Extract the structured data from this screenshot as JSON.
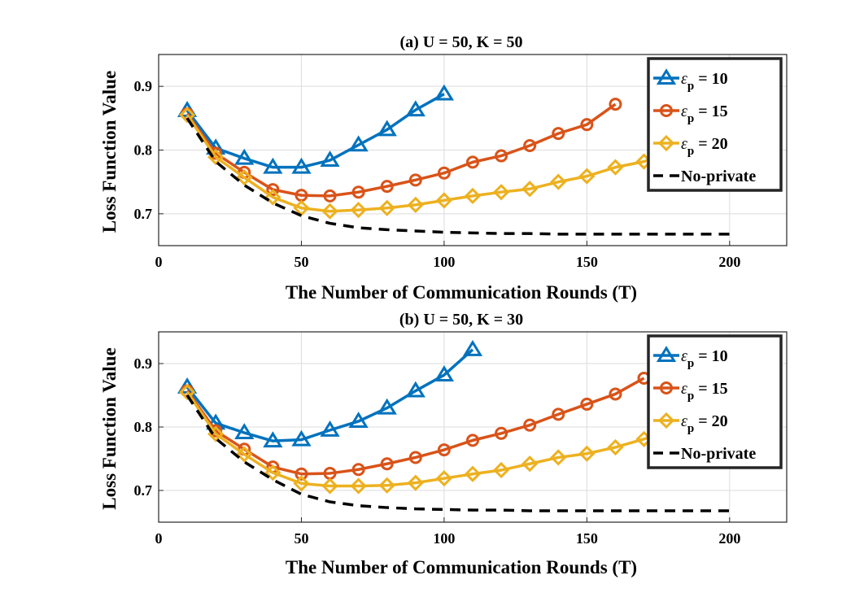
{
  "chart_data": [
    {
      "type": "line",
      "title": "(a) U = 50, K = 50",
      "xlabel": "The Number of Communication Rounds (T)",
      "ylabel": "Loss Function Value",
      "xlim": [
        0,
        220
      ],
      "ylim": [
        0.65,
        0.95
      ],
      "xticks": [
        0,
        50,
        100,
        150,
        200
      ],
      "yticks": [
        0.7,
        0.8,
        0.9
      ],
      "grid": true,
      "legend_position": "top-right",
      "series": [
        {
          "name": "ε_p = 10",
          "symbol": "ε",
          "subscript": "p",
          "value_text": " = 10",
          "color": "#0072BD",
          "marker": "triangle",
          "dash": false,
          "x": [
            10,
            20,
            30,
            40,
            50,
            60,
            70,
            80,
            90,
            100
          ],
          "y": [
            0.862,
            0.803,
            0.787,
            0.773,
            0.773,
            0.784,
            0.808,
            0.832,
            0.863,
            0.888
          ]
        },
        {
          "name": "ε_p = 15",
          "symbol": "ε",
          "subscript": "p",
          "value_text": " = 15",
          "color": "#D95319",
          "marker": "circle",
          "dash": false,
          "x": [
            10,
            20,
            30,
            40,
            50,
            60,
            70,
            80,
            90,
            100,
            110,
            120,
            130,
            140,
            150,
            160
          ],
          "y": [
            0.857,
            0.795,
            0.765,
            0.738,
            0.729,
            0.728,
            0.734,
            0.743,
            0.753,
            0.764,
            0.781,
            0.791,
            0.807,
            0.826,
            0.84,
            0.872
          ]
        },
        {
          "name": "ε_p = 20",
          "symbol": "ε",
          "subscript": "p",
          "value_text": " = 20",
          "color": "#EDB120",
          "marker": "diamond",
          "dash": false,
          "x": [
            10,
            20,
            30,
            40,
            50,
            60,
            70,
            80,
            90,
            100,
            110,
            120,
            130,
            140,
            150,
            160,
            170,
            180,
            190,
            200
          ],
          "y": [
            0.855,
            0.789,
            0.757,
            0.726,
            0.709,
            0.704,
            0.706,
            0.709,
            0.714,
            0.721,
            0.728,
            0.734,
            0.739,
            0.75,
            0.759,
            0.773,
            0.782,
            0.797,
            0.812,
            0.828
          ]
        },
        {
          "name": "No-private",
          "symbol": "",
          "subscript": "",
          "value_text": "No-private",
          "color": "#000000",
          "marker": "none",
          "dash": true,
          "x": [
            10,
            20,
            30,
            40,
            50,
            60,
            70,
            80,
            90,
            100,
            110,
            120,
            130,
            140,
            150,
            160,
            170,
            180,
            190,
            200
          ],
          "y": [
            0.85,
            0.782,
            0.745,
            0.717,
            0.697,
            0.685,
            0.678,
            0.675,
            0.673,
            0.671,
            0.67,
            0.669,
            0.669,
            0.668,
            0.668,
            0.668,
            0.668,
            0.668,
            0.668,
            0.668
          ]
        }
      ]
    },
    {
      "type": "line",
      "title": "(b) U = 50, K = 30",
      "xlabel": "The Number of Communication Rounds (T)",
      "ylabel": "Loss Function Value",
      "xlim": [
        0,
        220
      ],
      "ylim": [
        0.65,
        0.95
      ],
      "xticks": [
        0,
        50,
        100,
        150,
        200
      ],
      "yticks": [
        0.7,
        0.8,
        0.9
      ],
      "grid": true,
      "legend_position": "top-right",
      "series": [
        {
          "name": "ε_p = 10",
          "symbol": "ε",
          "subscript": "p",
          "value_text": " = 10",
          "color": "#0072BD",
          "marker": "triangle",
          "dash": false,
          "x": [
            10,
            20,
            30,
            40,
            50,
            60,
            70,
            80,
            90,
            100,
            110
          ],
          "y": [
            0.863,
            0.806,
            0.791,
            0.778,
            0.78,
            0.795,
            0.809,
            0.83,
            0.857,
            0.882,
            0.922
          ]
        },
        {
          "name": "ε_p = 15",
          "symbol": "ε",
          "subscript": "p",
          "value_text": " = 15",
          "color": "#D95319",
          "marker": "circle",
          "dash": false,
          "x": [
            10,
            20,
            30,
            40,
            50,
            60,
            70,
            80,
            90,
            100,
            110,
            120,
            130,
            140,
            150,
            160,
            170
          ],
          "y": [
            0.857,
            0.794,
            0.765,
            0.737,
            0.726,
            0.727,
            0.733,
            0.742,
            0.752,
            0.764,
            0.779,
            0.79,
            0.803,
            0.82,
            0.836,
            0.852,
            0.877
          ]
        },
        {
          "name": "ε_p = 20",
          "symbol": "ε",
          "subscript": "p",
          "value_text": " = 20",
          "color": "#EDB120",
          "marker": "diamond",
          "dash": false,
          "x": [
            10,
            20,
            30,
            40,
            50,
            60,
            70,
            80,
            90,
            100,
            110,
            120,
            130,
            140,
            150,
            160,
            170,
            180,
            190,
            200
          ],
          "y": [
            0.855,
            0.789,
            0.757,
            0.728,
            0.711,
            0.707,
            0.707,
            0.708,
            0.712,
            0.719,
            0.726,
            0.732,
            0.742,
            0.752,
            0.758,
            0.768,
            0.781,
            0.795,
            0.808,
            0.824
          ]
        },
        {
          "name": "No-private",
          "symbol": "",
          "subscript": "",
          "value_text": "No-private",
          "color": "#000000",
          "marker": "none",
          "dash": true,
          "x": [
            10,
            20,
            30,
            40,
            50,
            60,
            70,
            80,
            90,
            100,
            110,
            120,
            130,
            140,
            150,
            160,
            170,
            180,
            190,
            200
          ],
          "y": [
            0.85,
            0.782,
            0.745,
            0.717,
            0.694,
            0.682,
            0.676,
            0.673,
            0.671,
            0.67,
            0.669,
            0.669,
            0.668,
            0.668,
            0.668,
            0.668,
            0.668,
            0.668,
            0.668,
            0.668
          ]
        }
      ]
    }
  ]
}
